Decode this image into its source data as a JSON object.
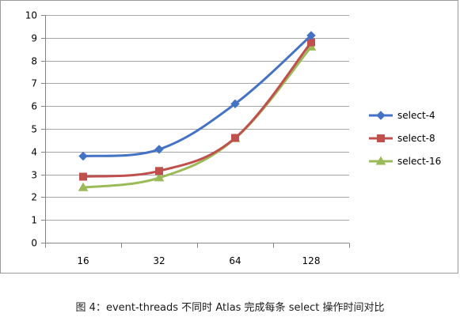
{
  "chart_data": {
    "type": "line",
    "categories": [
      "16",
      "32",
      "64",
      "128"
    ],
    "series": [
      {
        "name": "select-4",
        "values": [
          3.8,
          4.1,
          6.1,
          9.1
        ],
        "color": "#4472C4",
        "marker": "diamond"
      },
      {
        "name": "select-8",
        "values": [
          2.9,
          3.15,
          4.6,
          8.8
        ],
        "color": "#C0504D",
        "marker": "square"
      },
      {
        "name": "select-16",
        "values": [
          2.42,
          2.85,
          4.58,
          8.6
        ],
        "color": "#9BBB59",
        "marker": "triangle"
      }
    ],
    "ylim": [
      0,
      10
    ],
    "yticks": [
      "0",
      "1",
      "2",
      "3",
      "4",
      "5",
      "6",
      "7",
      "8",
      "9",
      "10"
    ],
    "grid": true,
    "legend": "right",
    "title": "",
    "xlabel": "",
    "ylabel": ""
  },
  "caption": "图 4：event-threads 不同时 Atlas 完成每条 select 操作时间对比"
}
